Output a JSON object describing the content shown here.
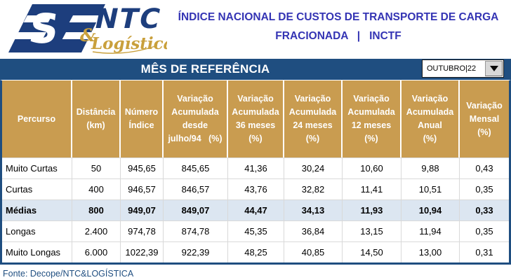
{
  "logo": {
    "ntc": "NTC",
    "amp": "&",
    "logistica": "Logística"
  },
  "title": {
    "line1": "ÍNDICE NACIONAL DE CUSTOS DE TRANSPORTE DE CARGA",
    "line2": "FRACIONADA   |   INCTF"
  },
  "reference_bar": {
    "label": "MÊS DE REFERÊNCIA"
  },
  "month_selector": {
    "value": "OUTUBRO|22"
  },
  "table": {
    "headers": [
      {
        "lines": [
          "Percurso"
        ]
      },
      {
        "lines": [
          "Distância",
          "(km)"
        ]
      },
      {
        "lines": [
          "Número",
          "Índice"
        ]
      },
      {
        "lines": [
          "Variação",
          "Acumulada",
          "desde",
          "julho/94   (%)"
        ]
      },
      {
        "lines": [
          "Variação",
          "Acumulada",
          "36 meses",
          "(%)"
        ]
      },
      {
        "lines": [
          "Variação",
          "Acumulada",
          "24 meses",
          "(%)"
        ]
      },
      {
        "lines": [
          "Variação",
          "Acumulada",
          "12 meses",
          "(%)"
        ]
      },
      {
        "lines": [
          "Variação",
          "Acumulada",
          "Anual",
          "(%)"
        ]
      },
      {
        "lines": [
          "Variação",
          "Mensal",
          "(%)"
        ]
      }
    ],
    "rows": [
      {
        "highlight": false,
        "cells": [
          "Muito Curtas",
          "50",
          "945,65",
          "845,65",
          "41,36",
          "30,24",
          "10,60",
          "9,88",
          "0,43"
        ]
      },
      {
        "highlight": false,
        "cells": [
          "Curtas",
          "400",
          "946,57",
          "846,57",
          "43,76",
          "32,82",
          "11,41",
          "10,51",
          "0,35"
        ]
      },
      {
        "highlight": true,
        "cells": [
          "Médias",
          "800",
          "949,07",
          "849,07",
          "44,47",
          "34,13",
          "11,93",
          "10,94",
          "0,33"
        ]
      },
      {
        "highlight": false,
        "cells": [
          "Longas",
          "2.400",
          "974,78",
          "874,78",
          "45,35",
          "36,84",
          "13,15",
          "11,94",
          "0,35"
        ]
      },
      {
        "highlight": false,
        "cells": [
          "Muito Longas",
          "6.000",
          "1022,39",
          "922,39",
          "48,25",
          "40,85",
          "14,50",
          "13,00",
          "0,31"
        ]
      }
    ]
  },
  "footer": {
    "source": "Fonte: Decope/NTC&LOGÍSTICA"
  },
  "colors": {
    "navy": "#1F4E80",
    "gold": "#C99C50",
    "title_blue": "#3434B4",
    "highlight_row": "#DCE6F1",
    "logo_navy": "#1D3E7D",
    "logo_gold": "#C9A03C",
    "grid_gray": "#D9D9D9"
  }
}
